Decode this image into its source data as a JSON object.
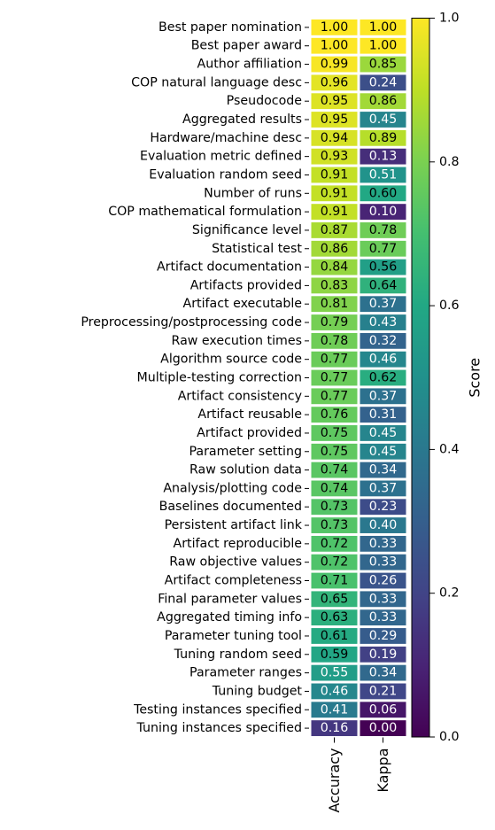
{
  "chart_data": {
    "type": "heatmap",
    "columns": [
      "Accuracy",
      "Kappa"
    ],
    "rows": [
      {
        "label": "Best paper nomination",
        "values": [
          1.0,
          1.0
        ]
      },
      {
        "label": "Best paper award",
        "values": [
          1.0,
          1.0
        ]
      },
      {
        "label": "Author affiliation",
        "values": [
          0.99,
          0.85
        ]
      },
      {
        "label": "COP natural language desc",
        "values": [
          0.96,
          0.24
        ]
      },
      {
        "label": "Pseudocode",
        "values": [
          0.95,
          0.86
        ]
      },
      {
        "label": "Aggregated results",
        "values": [
          0.95,
          0.45
        ]
      },
      {
        "label": "Hardware/machine desc",
        "values": [
          0.94,
          0.89
        ]
      },
      {
        "label": "Evaluation metric defined",
        "values": [
          0.93,
          0.13
        ]
      },
      {
        "label": "Evaluation random seed",
        "values": [
          0.91,
          0.51
        ]
      },
      {
        "label": "Number of runs",
        "values": [
          0.91,
          0.6
        ]
      },
      {
        "label": "COP mathematical formulation",
        "values": [
          0.91,
          0.1
        ]
      },
      {
        "label": "Significance level",
        "values": [
          0.87,
          0.78
        ]
      },
      {
        "label": "Statistical test",
        "values": [
          0.86,
          0.77
        ]
      },
      {
        "label": "Artifact documentation",
        "values": [
          0.84,
          0.56
        ]
      },
      {
        "label": "Artifacts provided",
        "values": [
          0.83,
          0.64
        ]
      },
      {
        "label": "Artifact executable",
        "values": [
          0.81,
          0.37
        ]
      },
      {
        "label": "Preprocessing/postprocessing code",
        "values": [
          0.79,
          0.43
        ]
      },
      {
        "label": "Raw execution times",
        "values": [
          0.78,
          0.32
        ]
      },
      {
        "label": "Algorithm source code",
        "values": [
          0.77,
          0.46
        ]
      },
      {
        "label": "Multiple-testing correction",
        "values": [
          0.77,
          0.62
        ]
      },
      {
        "label": "Artifact consistency",
        "values": [
          0.77,
          0.37
        ]
      },
      {
        "label": "Artifact reusable",
        "values": [
          0.76,
          0.31
        ]
      },
      {
        "label": "Artifact provided",
        "values": [
          0.75,
          0.45
        ]
      },
      {
        "label": "Parameter setting",
        "values": [
          0.75,
          0.45
        ]
      },
      {
        "label": "Raw solution data",
        "values": [
          0.74,
          0.34
        ]
      },
      {
        "label": "Analysis/plotting code",
        "values": [
          0.74,
          0.37
        ]
      },
      {
        "label": "Baselines documented",
        "values": [
          0.73,
          0.23
        ]
      },
      {
        "label": "Persistent artifact link",
        "values": [
          0.73,
          0.4
        ]
      },
      {
        "label": "Artifact reproducible",
        "values": [
          0.72,
          0.33
        ]
      },
      {
        "label": "Raw objective values",
        "values": [
          0.72,
          0.33
        ]
      },
      {
        "label": "Artifact completeness",
        "values": [
          0.71,
          0.26
        ]
      },
      {
        "label": "Final parameter values",
        "values": [
          0.65,
          0.33
        ]
      },
      {
        "label": "Aggregated timing info",
        "values": [
          0.63,
          0.33
        ]
      },
      {
        "label": "Parameter tuning tool",
        "values": [
          0.61,
          0.29
        ]
      },
      {
        "label": "Tuning random seed",
        "values": [
          0.59,
          0.19
        ]
      },
      {
        "label": "Parameter ranges",
        "values": [
          0.55,
          0.34
        ]
      },
      {
        "label": "Tuning budget",
        "values": [
          0.46,
          0.21
        ]
      },
      {
        "label": "Testing instances specified",
        "values": [
          0.41,
          0.06
        ]
      },
      {
        "label": "Tuning instances specified",
        "values": [
          0.16,
          0.0
        ]
      }
    ],
    "colormap": "viridis",
    "colorbar": {
      "label": "Score",
      "range": [
        0.0,
        1.0
      ],
      "ticks": [
        "0.0",
        "0.2",
        "0.4",
        "0.6",
        "0.8",
        "1.0"
      ]
    },
    "value_format": "2 decimals",
    "legend": "colorbar right",
    "title": "",
    "xlabel": "",
    "ylabel": ""
  }
}
